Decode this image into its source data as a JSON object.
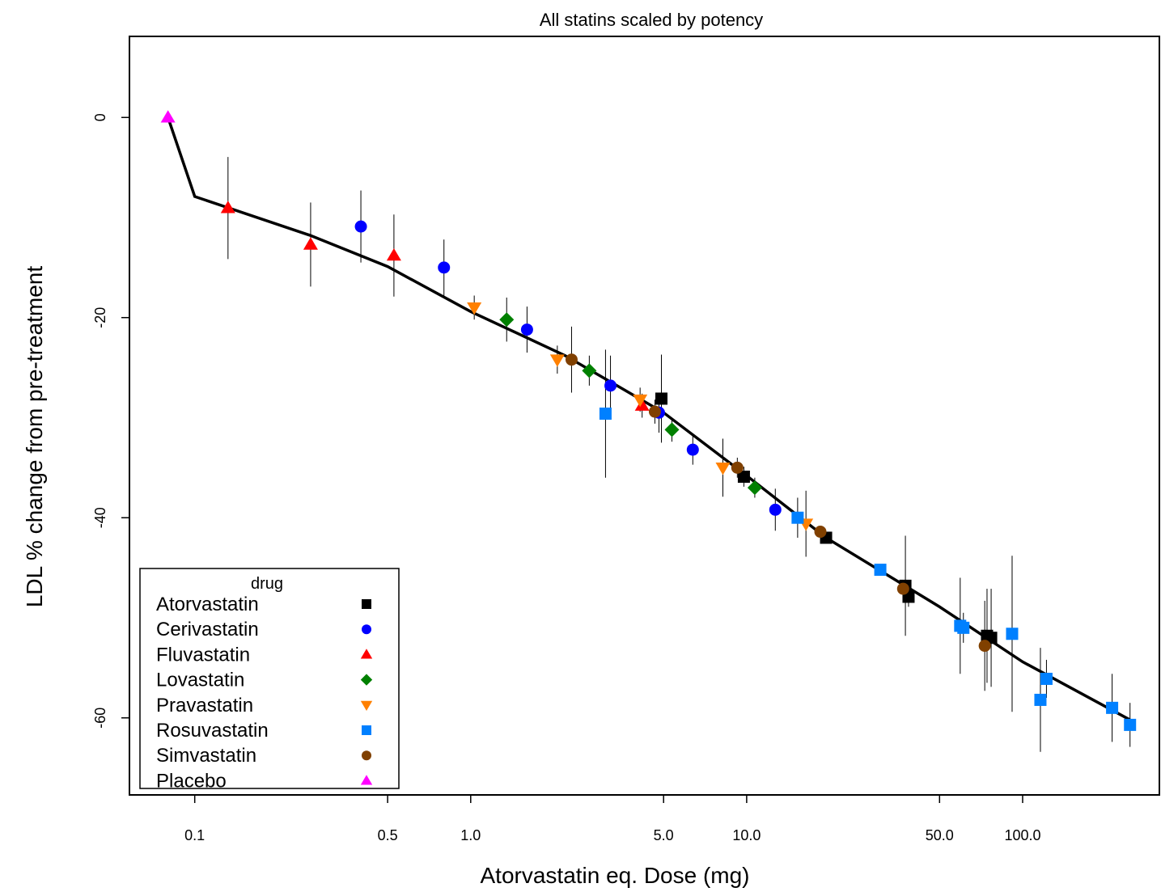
{
  "chart_data": {
    "type": "scatter",
    "title": "All statins scaled by potency",
    "x_label": "Atorvastatin eq. Dose (mg)",
    "y_label": "LDL % change from pre-treatment",
    "x_scale": "log",
    "xlim": [
      0.058,
      313
    ],
    "ylim": [
      -67.7,
      8.1
    ],
    "xticks": [
      0.1,
      0.5,
      {
        "value": 1,
        "label": "1.0"
      },
      {
        "value": 5,
        "label": "5.0"
      },
      {
        "value": 10,
        "label": "10.0"
      },
      {
        "value": 50,
        "label": "50.0"
      },
      {
        "value": 100,
        "label": "100.0"
      }
    ],
    "yticks": [
      0,
      -20,
      -40,
      -60
    ],
    "legend_title": "drug",
    "legend_position": "bottom-left",
    "series": [
      {
        "name": "Atorvastatin",
        "color": "#000000",
        "marker": "square",
        "x": [
          4.91,
          9.77,
          19.4,
          37.6,
          38.6,
          74.3,
          76.9
        ],
        "values": [
          -28.1,
          -35.9,
          -42.0,
          -46.8,
          -47.9,
          -51.8,
          -52.0
        ],
        "errors": [
          4.4,
          1.0,
          0.5,
          5.0,
          1.0,
          4.7,
          4.9
        ]
      },
      {
        "name": "Cerivastatin",
        "color": "#0000ff",
        "marker": "circle",
        "x": [
          0.4,
          0.8,
          1.6,
          3.21,
          4.81,
          6.38,
          12.7
        ],
        "values": [
          -10.9,
          -15.0,
          -21.2,
          -26.8,
          -29.5,
          -33.2,
          -39.2
        ],
        "errors": [
          3.6,
          2.8,
          2.3,
          3.0,
          2.0,
          1.5,
          2.1
        ]
      },
      {
        "name": "Fluvastatin",
        "color": "#ff0000",
        "marker": "triangle",
        "x": [
          0.132,
          0.263,
          0.527,
          4.18
        ],
        "values": [
          -9.05,
          -12.7,
          -13.8,
          -28.8
        ],
        "errors": [
          5.1,
          4.2,
          4.1,
          1.2
        ]
      },
      {
        "name": "Lovastatin",
        "color": "#008000",
        "marker": "diamond",
        "x": [
          1.35,
          2.69,
          5.36,
          10.7
        ],
        "values": [
          -20.2,
          -25.3,
          -31.2,
          -37.0
        ],
        "errors": [
          2.2,
          1.5,
          1.2,
          1.0
        ]
      },
      {
        "name": "Pravastatin",
        "color": "#ff8000",
        "marker": "triangle-down",
        "x": [
          1.03,
          2.06,
          4.11,
          8.2,
          16.4
        ],
        "values": [
          -19.0,
          -24.2,
          -28.2,
          -35.0,
          -40.6
        ],
        "errors": [
          1.2,
          1.4,
          1.2,
          2.9,
          3.3
        ]
      },
      {
        "name": "Rosuvastatin",
        "color": "#0080ff",
        "marker": "square",
        "x": [
          3.08,
          15.3,
          30.5,
          59.4,
          61,
          91.6,
          116,
          122,
          211,
          245
        ],
        "values": [
          -29.6,
          -40.0,
          -45.2,
          -50.8,
          -51.0,
          -51.6,
          -58.2,
          -56.1,
          -59.0,
          -60.7
        ],
        "errors": [
          6.4,
          2.0,
          0.5,
          4.8,
          1.5,
          7.8,
          5.2,
          1.9,
          3.4,
          2.2
        ]
      },
      {
        "name": "Simvastatin",
        "color": "#804000",
        "marker": "circle",
        "x": [
          2.32,
          4.65,
          9.25,
          18.5,
          36.9,
          72.9
        ],
        "values": [
          -24.2,
          -29.4,
          -35.0,
          -41.4,
          -47.1,
          -52.8
        ],
        "errors": [
          3.3,
          1.2,
          1.0,
          0.5,
          0.6,
          4.5
        ]
      },
      {
        "name": "Placebo",
        "color": "#ff00ff",
        "marker": "triangle",
        "x": [
          0.08
        ],
        "values": [
          0
        ],
        "errors": [
          0
        ]
      }
    ],
    "fit": {
      "color": "#000000",
      "x": [
        0.08,
        0.1,
        0.263,
        0.5,
        1,
        2.2,
        5,
        10,
        19.4,
        50,
        100,
        245
      ],
      "values": [
        0,
        -7.9,
        -11.8,
        -14.9,
        -19.4,
        -23.8,
        -29.5,
        -35.8,
        -42.0,
        -48.9,
        -54.4,
        -60.2
      ]
    }
  }
}
